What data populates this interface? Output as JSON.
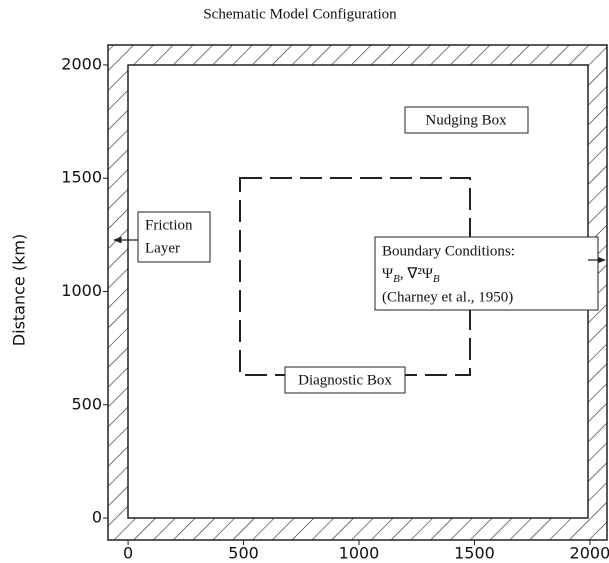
{
  "title": "Schematic Model Configuration",
  "axes": {
    "ylabel": "Distance (km)",
    "xlim": [
      -87,
      2074
    ],
    "ylim": [
      -97,
      2088
    ],
    "xticks": [
      0,
      500,
      1000,
      1500,
      2000
    ],
    "yticks": [
      0,
      500,
      1000,
      1500,
      2000
    ]
  },
  "labels": {
    "nudging": "Nudging Box",
    "friction": [
      "Friction",
      "Layer"
    ],
    "boundary": {
      "heading": "Boundary Conditions:",
      "formula": [
        "Ψ",
        "B",
        ",  ∇²Ψ",
        "B"
      ],
      "citation": "(Charney et al., 1950)"
    },
    "diagnostic": "Diagnostic Box"
  }
}
